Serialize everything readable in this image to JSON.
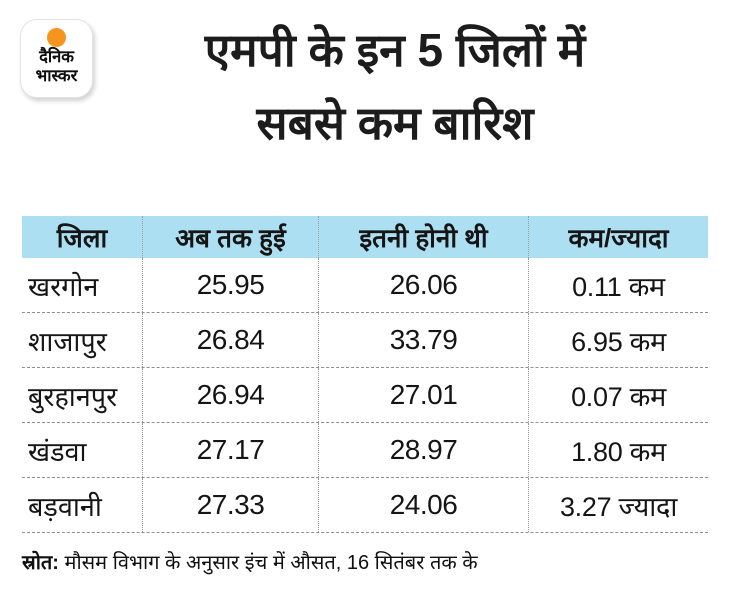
{
  "brand": {
    "logo_line1": "दैनिक",
    "logo_line2": "भास्कर",
    "sun_color": "#F7941D"
  },
  "title": {
    "line1": "एमपी के इन 5 जिलों में",
    "line2": "सबसे कम बारिश"
  },
  "table": {
    "header_bg": "#ADDFF2",
    "divider_color": "#9a9a9a",
    "columns": [
      "जिला",
      "अब तक हुई",
      "इतनी होनी थी",
      "कम/ज्यादा"
    ],
    "rows": [
      {
        "district": "खरगोन",
        "so_far": "25.95",
        "expected": "26.06",
        "diff": "0.11 कम"
      },
      {
        "district": "शाजापुर",
        "so_far": "26.84",
        "expected": "33.79",
        "diff": "6.95 कम"
      },
      {
        "district": "बुरहानपुर",
        "so_far": "26.94",
        "expected": "27.01",
        "diff": "0.07 कम"
      },
      {
        "district": "खंडवा",
        "so_far": "27.17",
        "expected": "28.97",
        "diff": "1.80 कम"
      },
      {
        "district": "बड़वानी",
        "so_far": "27.33",
        "expected": "24.06",
        "diff": "3.27 ज्यादा"
      }
    ]
  },
  "source": {
    "label": "स्रोत:",
    "text": " मौसम विभाग के अनुसार इंच में औसत, 16 सितंबर तक के"
  },
  "chart_data": {
    "type": "table",
    "title": "एमपी के इन 5 जिलों में सबसे कम बारिश",
    "columns": [
      "जिला",
      "अब तक हुई",
      "इतनी होनी थी",
      "कम/ज्यादा"
    ],
    "rows": [
      [
        "खरगोन",
        25.95,
        26.06,
        "0.11 कम"
      ],
      [
        "शाजापुर",
        26.84,
        33.79,
        "6.95 कम"
      ],
      [
        "बुरहानपुर",
        26.94,
        27.01,
        "0.07 कम"
      ],
      [
        "खंडवा",
        27.17,
        28.97,
        "1.80 कम"
      ],
      [
        "बड़वानी",
        27.33,
        24.06,
        "3.27 ज्यादा"
      ]
    ],
    "units": "इंच (औसत)",
    "note": "स्रोत: मौसम विभाग के अनुसार इंच में औसत, 16 सितंबर तक के"
  }
}
